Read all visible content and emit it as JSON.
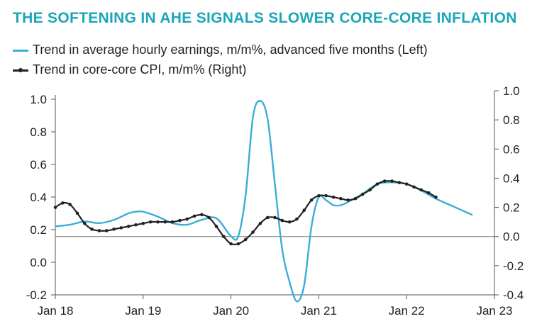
{
  "header": {
    "title": "THE SOFTENING IN AHE SIGNALS SLOWER CORE-CORE INFLATION",
    "title_color": "#1aa7b8"
  },
  "chart_data": {
    "type": "line",
    "x_ticks": [
      "Jan 18",
      "Jan 19",
      "Jan 20",
      "Jan 21",
      "Jan 22",
      "Jan 23"
    ],
    "x_tick_months": [
      0,
      12,
      24,
      36,
      48,
      60
    ],
    "x_range": [
      0,
      60
    ],
    "y_left": {
      "lim": [
        -0.2,
        1.0
      ],
      "ticks": [
        -0.2,
        0.0,
        0.2,
        0.4,
        0.6,
        0.8,
        1.0
      ],
      "tick_labels": [
        "-0.2",
        "0.0",
        "0.2",
        "0.4",
        "0.6",
        "0.8",
        "1.0"
      ]
    },
    "y_right": {
      "lim": [
        -0.4,
        1.0
      ],
      "ticks": [
        -0.4,
        -0.2,
        0.0,
        0.2,
        0.4,
        0.6,
        0.8,
        1.0
      ],
      "tick_labels": [
        "-0.4",
        "-0.2",
        "0.0",
        "0.2",
        "0.4",
        "0.6",
        "0.8",
        "1.0"
      ]
    },
    "zero_line": true,
    "series": [
      {
        "name": "Trend in average hourly earnings, m/m%, advanced five months (Left)",
        "axis": "left",
        "color": "#3aaed6",
        "marker": false,
        "x": [
          0,
          2,
          4,
          6,
          8,
          10,
          11,
          12,
          14,
          16,
          18,
          20,
          22,
          24,
          25,
          26,
          27,
          28,
          29,
          30,
          31,
          32,
          33,
          34,
          35,
          36,
          37,
          38,
          39,
          40,
          42,
          44,
          46,
          48,
          50,
          52,
          54,
          56,
          57
        ],
        "y": [
          0.22,
          0.23,
          0.25,
          0.24,
          0.26,
          0.3,
          0.31,
          0.31,
          0.28,
          0.24,
          0.23,
          0.26,
          0.27,
          0.16,
          0.16,
          0.41,
          0.89,
          0.99,
          0.88,
          0.48,
          0.08,
          -0.12,
          -0.24,
          -0.14,
          0.22,
          0.4,
          0.38,
          0.35,
          0.35,
          0.37,
          0.42,
          0.48,
          0.49,
          0.48,
          0.44,
          0.39,
          0.35,
          0.31,
          0.29
        ]
      },
      {
        "name": "Trend in core-core CPI, m/m% (Right)",
        "axis": "right",
        "color": "#222222",
        "marker": true,
        "x": [
          0,
          1,
          2,
          3,
          4,
          5,
          6,
          7,
          8,
          9,
          10,
          11,
          12,
          13,
          14,
          15,
          16,
          17,
          18,
          19,
          20,
          21,
          22,
          23,
          24,
          25,
          26,
          27,
          28,
          29,
          30,
          31,
          32,
          33,
          34,
          35,
          36,
          37,
          38,
          39,
          40,
          41,
          42,
          43,
          44,
          45,
          46,
          47,
          48,
          49,
          50,
          51,
          52
        ],
        "y": [
          0.2,
          0.23,
          0.22,
          0.16,
          0.09,
          0.05,
          0.04,
          0.04,
          0.05,
          0.06,
          0.07,
          0.08,
          0.09,
          0.1,
          0.1,
          0.1,
          0.1,
          0.11,
          0.12,
          0.14,
          0.15,
          0.13,
          0.07,
          0.0,
          -0.05,
          -0.05,
          -0.02,
          0.03,
          0.09,
          0.13,
          0.13,
          0.11,
          0.1,
          0.12,
          0.18,
          0.25,
          0.28,
          0.28,
          0.27,
          0.26,
          0.25,
          0.26,
          0.29,
          0.32,
          0.36,
          0.38,
          0.38,
          0.37,
          0.36,
          0.34,
          0.32,
          0.3,
          0.27
        ]
      }
    ]
  }
}
